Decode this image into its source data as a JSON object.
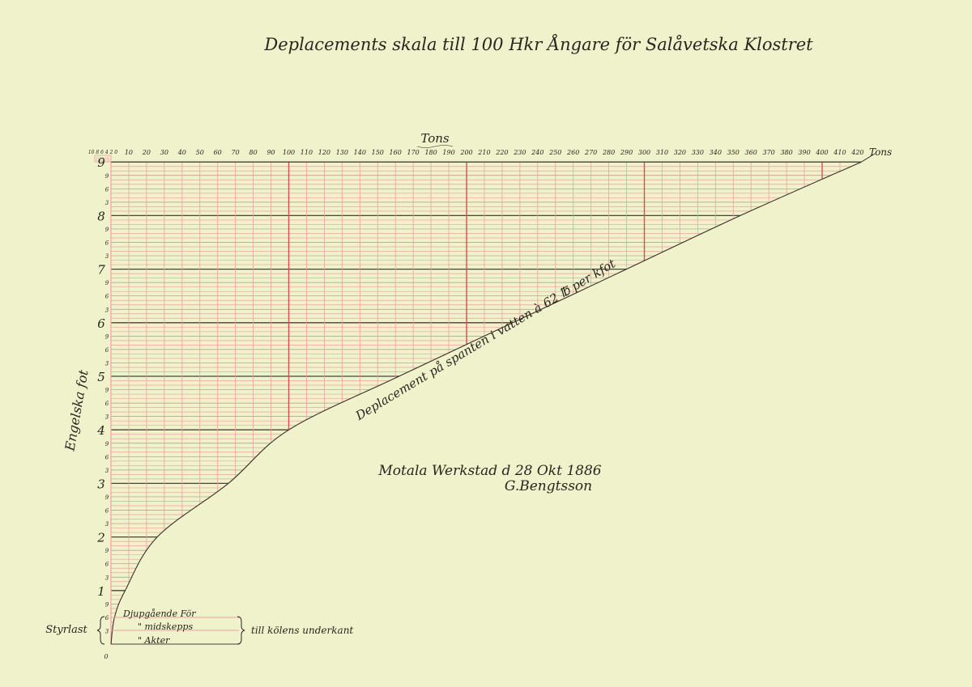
{
  "chart_data": {
    "type": "line",
    "title": "Deplacements skala till 100 Hkr Ångare för Salåvetska Klostret",
    "xlabel": "Tons",
    "xlabel_end": "Tons",
    "ylabel": "Engelska fot",
    "xlim": [
      0,
      420
    ],
    "ylim": [
      0,
      9
    ],
    "x_ticks": [
      10,
      20,
      30,
      40,
      50,
      60,
      70,
      80,
      90,
      100,
      110,
      120,
      130,
      140,
      150,
      160,
      170,
      180,
      190,
      200,
      210,
      220,
      230,
      240,
      250,
      260,
      270,
      280,
      290,
      300,
      310,
      320,
      330,
      340,
      350,
      360,
      370,
      380,
      390,
      400,
      410,
      420
    ],
    "x_small_scale_label": "10 8 6 4 2 0",
    "y_ticks_feet": [
      "0",
      "1",
      "2",
      "3",
      "4",
      "5",
      "6",
      "7",
      "8",
      "9"
    ],
    "y_ticks_inches": [
      "3",
      "6",
      "9"
    ],
    "grid": true,
    "series": [
      {
        "name": "Deplacement på spanten i vatten à 62 ℔ per kfot",
        "color": "#3a3028",
        "points": [
          [
            0,
            0
          ],
          [
            2,
            0.5
          ],
          [
            8,
            1
          ],
          [
            26,
            2
          ],
          [
            66,
            3
          ],
          [
            100,
            4
          ],
          [
            162,
            5
          ],
          [
            226,
            6
          ],
          [
            290,
            7
          ],
          [
            354,
            8
          ],
          [
            422,
            9
          ]
        ]
      }
    ],
    "annotations": {
      "curve_label": "Deplacement på spanten i vatten à 62 ℔ per kfot",
      "signature_place_date": "Motala Werkstad d 28 Okt 1886",
      "signature_name": "G.Bengtsson",
      "draft_label": "Styrlast",
      "draft_rows": [
        "Djupgående För",
        "\"     midskepps",
        "\"     Akter"
      ],
      "draft_suffix": "till kölens underkant",
      "zero_label": "0"
    },
    "colors": {
      "paper": "#eff2cb",
      "ink": "#2a2520",
      "red_grid": "#eaa3a0",
      "red_major": "#d9504c",
      "foot_line": "#4a4238"
    }
  }
}
